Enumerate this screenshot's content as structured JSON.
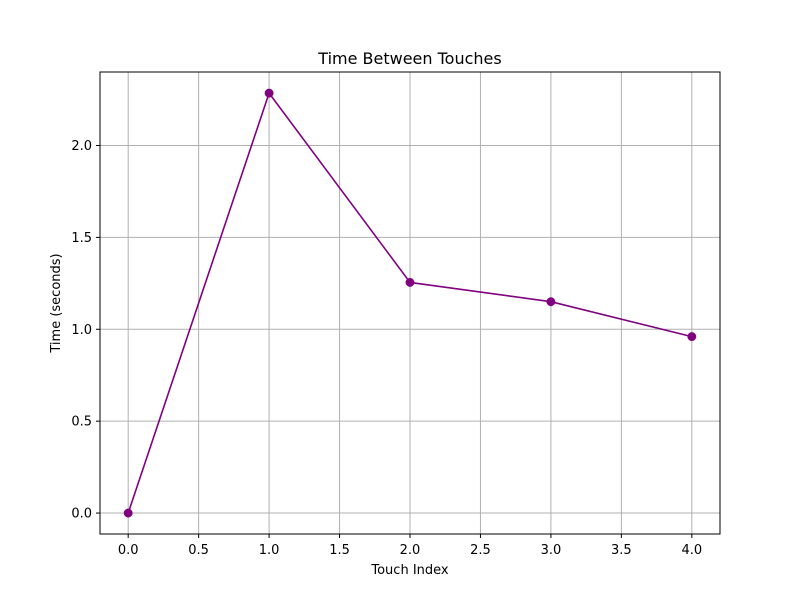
{
  "chart_data": {
    "type": "line",
    "title": "Time Between Touches",
    "xlabel": "Touch Index",
    "ylabel": "Time (seconds)",
    "x": [
      0,
      1,
      2,
      3,
      4
    ],
    "series": [
      {
        "values": [
          0.0,
          2.285,
          1.255,
          1.15,
          0.96
        ]
      }
    ],
    "xlim": [
      -0.2,
      4.2
    ],
    "ylim": [
      -0.114,
      2.4
    ],
    "xticks": [
      0.0,
      0.5,
      1.0,
      1.5,
      2.0,
      2.5,
      3.0,
      3.5,
      4.0
    ],
    "xtick_labels": [
      "0.0",
      "0.5",
      "1.0",
      "1.5",
      "2.0",
      "2.5",
      "3.0",
      "3.5",
      "4.0"
    ],
    "yticks": [
      0.0,
      0.5,
      1.0,
      1.5,
      2.0
    ],
    "ytick_labels": [
      "0.0",
      "0.5",
      "1.0",
      "1.5",
      "2.0"
    ],
    "grid": true,
    "marker": "circle",
    "colors": {
      "line": "#800080",
      "grid": "#b0b0b0",
      "axes": "#000000"
    }
  }
}
